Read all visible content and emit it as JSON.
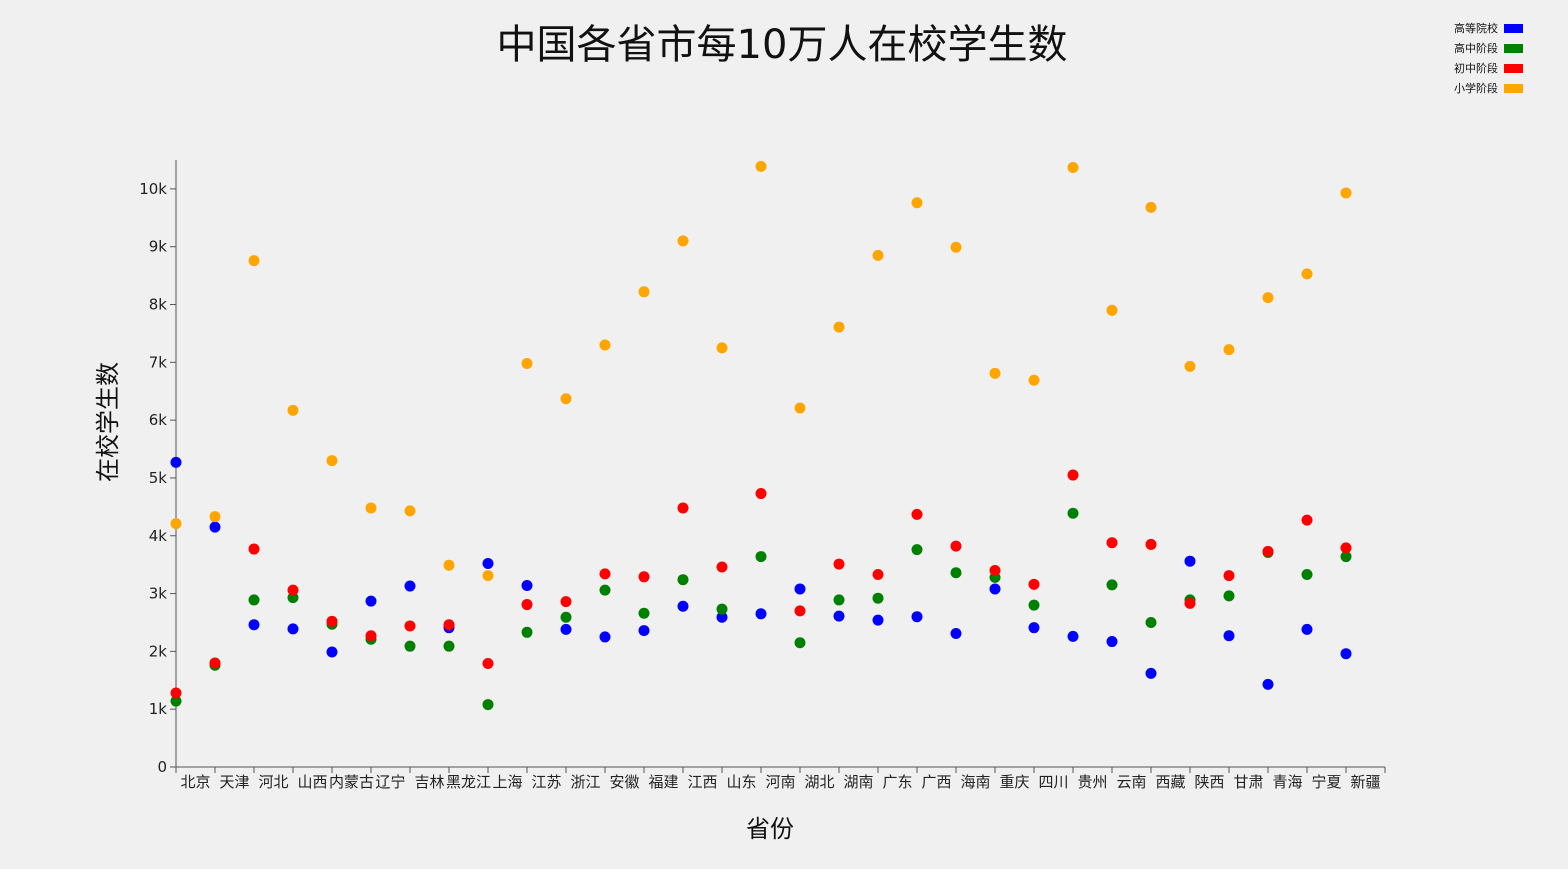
{
  "chart_data": {
    "type": "scatter",
    "title": "中国各省市每10万人在校学生数",
    "xlabel": "省份",
    "ylabel": "在校学生数",
    "ylim": [
      0,
      10500
    ],
    "yticks": [
      0,
      1000,
      2000,
      3000,
      4000,
      5000,
      6000,
      7000,
      8000,
      9000,
      10000
    ],
    "ytick_labels": [
      "0",
      "1k",
      "2k",
      "3k",
      "4k",
      "5k",
      "6k",
      "7k",
      "8k",
      "9k",
      "10k"
    ],
    "categories": [
      "北京",
      "天津",
      "河北",
      "山西",
      "内蒙古",
      "辽宁",
      "吉林",
      "黑龙江",
      "上海",
      "江苏",
      "浙江",
      "安徽",
      "福建",
      "江西",
      "山东",
      "河南",
      "湖北",
      "湖南",
      "广东",
      "广西",
      "海南",
      "重庆",
      "四川",
      "贵州",
      "云南",
      "西藏",
      "陕西",
      "甘肃",
      "青海",
      "宁夏",
      "新疆"
    ],
    "legend_position": "top-right",
    "grid": false,
    "series": [
      {
        "name": "高等院校",
        "color": "#0000ff",
        "values": [
          5270,
          4150,
          2460,
          2390,
          1990,
          2870,
          3130,
          2410,
          3520,
          3140,
          2380,
          2250,
          2360,
          2780,
          2590,
          2650,
          3080,
          2610,
          2540,
          2600,
          2310,
          3080,
          2410,
          2260,
          2170,
          1620,
          3560,
          2270,
          1430,
          2380,
          1960
        ]
      },
      {
        "name": "高中阶段",
        "color": "#008000",
        "values": [
          1140,
          1760,
          2890,
          2930,
          2470,
          2210,
          2090,
          2090,
          1080,
          2330,
          2590,
          3060,
          2660,
          3240,
          2730,
          3640,
          2150,
          2890,
          2920,
          3760,
          3360,
          3280,
          2800,
          4390,
          3150,
          2500,
          2890,
          2960,
          3710,
          3330,
          3640
        ]
      },
      {
        "name": "初中阶段",
        "color": "#ff0000",
        "values": [
          1280,
          1800,
          3770,
          3060,
          2520,
          2270,
          2440,
          2460,
          1790,
          2810,
          2860,
          3340,
          3290,
          4480,
          3460,
          4730,
          2700,
          3510,
          3330,
          4370,
          3820,
          3400,
          3160,
          5050,
          3880,
          3850,
          2830,
          3310,
          3730,
          4270,
          3790
        ]
      },
      {
        "name": "小学阶段",
        "color": "#ffa500",
        "values": [
          4210,
          4330,
          8760,
          6170,
          5300,
          4480,
          4430,
          3490,
          3310,
          6980,
          6370,
          7300,
          8220,
          9100,
          7250,
          10390,
          6210,
          7610,
          8850,
          9760,
          8990,
          6810,
          6690,
          10370,
          7900,
          9680,
          6930,
          7220,
          8120,
          8530,
          9930
        ]
      }
    ]
  }
}
